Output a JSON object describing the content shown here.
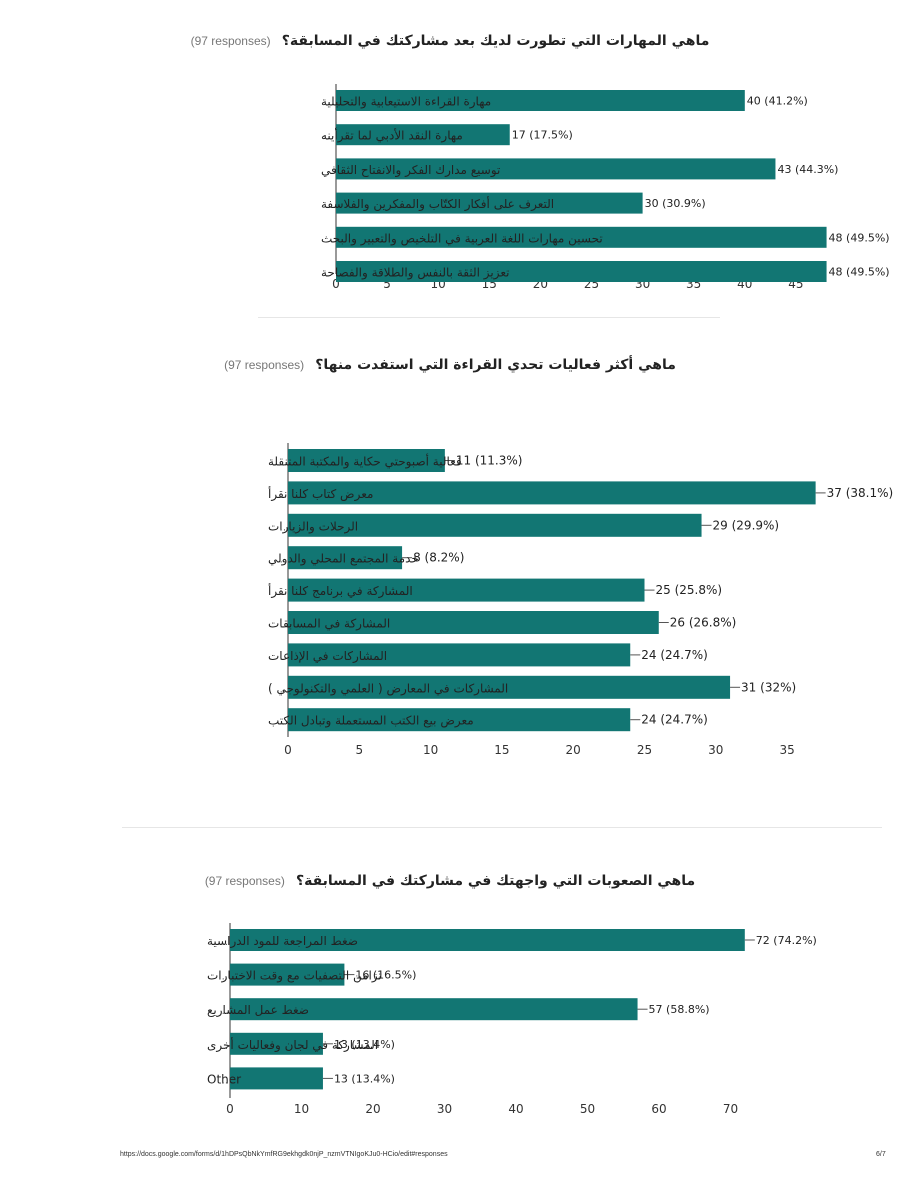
{
  "colors": {
    "bar": "#127673",
    "axis": "#333333",
    "text": "#222222",
    "muted": "#777777"
  },
  "chart_data": [
    {
      "type": "bar",
      "orientation": "horizontal",
      "title": "ماهي المهارات التي تطورت لديك بعد مشاركتك في المسابقة؟",
      "responses": "(97 responses)",
      "categories": [
        "مهارة القراءة الاستيعابية والتحليلية",
        "مهارة النقد الأدبي لما تقرأينه",
        "توسيع مدارك الفكر والانفتاح الثقافي",
        "التعرف على أفكار الكتّاب والمفكرين والفلاسفة",
        "تحسين مهارات اللغة العربية في التلخيص والتعبير والبحث",
        "تعزيز الثقة بالنفس والطلاقة والفصاحة"
      ],
      "values": [
        40,
        17,
        43,
        30,
        48,
        48
      ],
      "data_labels": [
        "40 (41.2%)",
        "17 (17.5%)",
        "43 (44.3%)",
        "30 (30.9%)",
        "48 (49.5%)",
        "48 (49.5%)"
      ],
      "xlim": [
        0,
        48
      ],
      "xticks": [
        "0",
        "5",
        "10",
        "15",
        "20",
        "25",
        "30",
        "35",
        "40",
        "45"
      ],
      "xlabel": "",
      "ylabel": ""
    },
    {
      "type": "bar",
      "orientation": "horizontal",
      "title": "ماهي أكثر فعاليات تحدي القراءة التي استفدت منها؟",
      "responses": "(97 responses)",
      "categories": [
        "فعالية أصبوحتي حكاية والمكتبة المتنقلة",
        "معرض كتاب كلنا نقرأ",
        "الرحلات والزيارات",
        "خدمة المجتمع المحلي والدولي",
        "المشاركة في برنامج كلنا نقرأ",
        "المشاركة في المسابقات",
        "المشاركات في الإذاعات",
        "المشاركات في المعارض ( العلمي والتكنولوجي )",
        "معرض بيع الكتب المستعملة وتبادل الكتب"
      ],
      "values": [
        11,
        37,
        29,
        8,
        25,
        26,
        24,
        31,
        24
      ],
      "data_labels": [
        "11 (11.3%)",
        "37 (38.1%)",
        "29 (29.9%)",
        "8 (8.2%)",
        "25 (25.8%)",
        "26 (26.8%)",
        "24 (24.7%)",
        "31 (32%)",
        "24 (24.7%)"
      ],
      "xlim": [
        0,
        37
      ],
      "xticks": [
        "0",
        "5",
        "10",
        "15",
        "20",
        "25",
        "30",
        "35"
      ],
      "xlabel": "",
      "ylabel": ""
    },
    {
      "type": "bar",
      "orientation": "horizontal",
      "title": "ماهي الصعوبات التي واجهتك في مشاركتك في المسابقة؟",
      "responses": "(97 responses)",
      "categories": [
        "ضغط المراجعة للمود الدراسية",
        "تزامن التصفيات مع وقت الاختبارات",
        "ضغط عمل المشاريع",
        "المشاركة في لجان وفعاليات أخرى",
        "Other"
      ],
      "values": [
        72,
        16,
        57,
        13,
        13
      ],
      "data_labels": [
        "72 (74.2%)",
        "16 (16.5%)",
        "57 (58.8%)",
        "13 (13.4%)",
        "13 (13.4%)"
      ],
      "xlim": [
        0,
        72
      ],
      "xticks": [
        "0",
        "10",
        "20",
        "30",
        "40",
        "50",
        "60",
        "70"
      ],
      "xlabel": "",
      "ylabel": ""
    }
  ],
  "footer": {
    "url": "https://docs.google.com/forms/d/1hDPsQbNkYmfRG9ekhgdk0njP_nzmVTNIgoKJu0-HCio/edit#responses",
    "page": "6/7"
  }
}
